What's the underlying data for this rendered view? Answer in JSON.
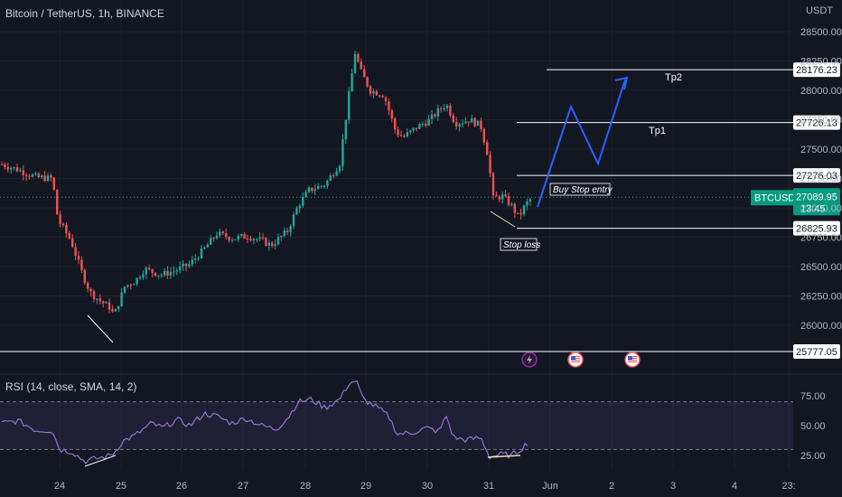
{
  "header": {
    "symbol_title": "Bitcoin / TetherUS, 1h, BINANCE"
  },
  "price_axis": {
    "currency": "USDT",
    "ticks": [
      "28500.00",
      "28250.00",
      "28000.00",
      "27750.00",
      "27500.00",
      "27250.00",
      "27000.00",
      "26750.00",
      "26500.00",
      "26250.00",
      "26000.00"
    ]
  },
  "rsi_axis": {
    "ticks": [
      "75.00",
      "50.00",
      "25.00"
    ]
  },
  "time_axis": {
    "ticks": [
      "24",
      "25",
      "26",
      "27",
      "28",
      "29",
      "30",
      "31",
      "Jun",
      "2",
      "3",
      "4",
      "23:"
    ]
  },
  "levels": {
    "tp2": {
      "price": "28176.23",
      "label": "Tp2"
    },
    "tp1": {
      "price": "27726.13",
      "label": "Tp1"
    },
    "entry": {
      "price": "27276.03",
      "label": "Buy Stop entry"
    },
    "stop": {
      "price": "26825.93",
      "label": "Stop loss"
    },
    "support": {
      "price": "25777.05"
    }
  },
  "current": {
    "symbol": "BTCUSDT",
    "price": "27089.95",
    "countdown": "13:45"
  },
  "rsi": {
    "label": "RSI (14, close, SMA, 14, 2)"
  },
  "colors": {
    "up": "#26a69a",
    "down": "#ef5350",
    "projection": "#2962ff",
    "rsi": "#9575cd",
    "rsi_band": "#7e57c2"
  },
  "icons": [
    "lightning-icon",
    "us-flag-icon",
    "us-flag-icon"
  ]
}
